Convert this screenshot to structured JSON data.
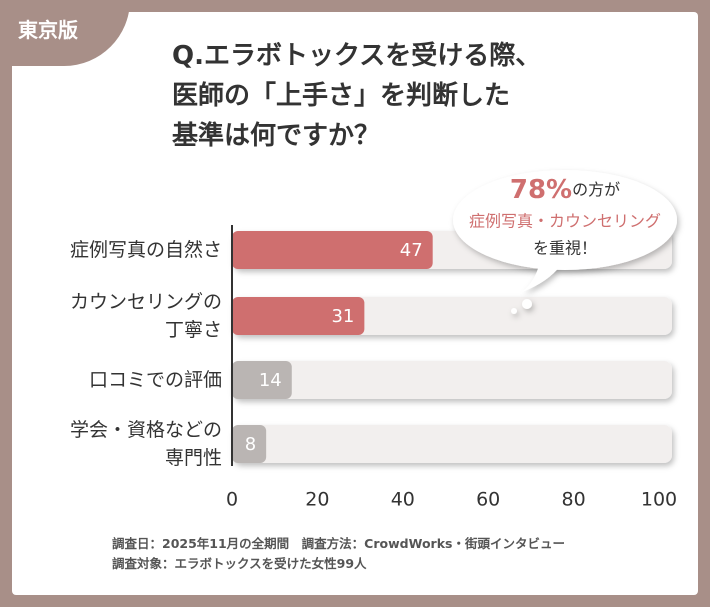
{
  "badge": "東京版",
  "chart_data": {
    "type": "bar",
    "orientation": "horizontal",
    "title": "Q.エラボトックスを受ける際、\n医師の「上手さ」を判断した\n基準は何ですか？",
    "categories": [
      "症例写真の自然さ",
      "カウンセリングの\n丁寧さ",
      "口コミでの評価",
      "学会・資格などの\n専門性"
    ],
    "values": [
      47,
      31,
      14,
      8
    ],
    "colors": [
      "#cf6f6f",
      "#cf6f6f",
      "#bab5b3",
      "#bab5b3"
    ],
    "xlim": [
      0,
      100
    ],
    "xticks": [
      0,
      20,
      40,
      60,
      80,
      100
    ],
    "callout": {
      "highlight": "78%",
      "rest": "の方が",
      "line2": "症例写真・カウンセリング",
      "line3": "を重視！"
    }
  },
  "footnote": "調査日：2025年11月の全期間　調査方法：CrowdWorks・街頭インタビュー\n調査対象：エラボトックスを受けた女性99人"
}
